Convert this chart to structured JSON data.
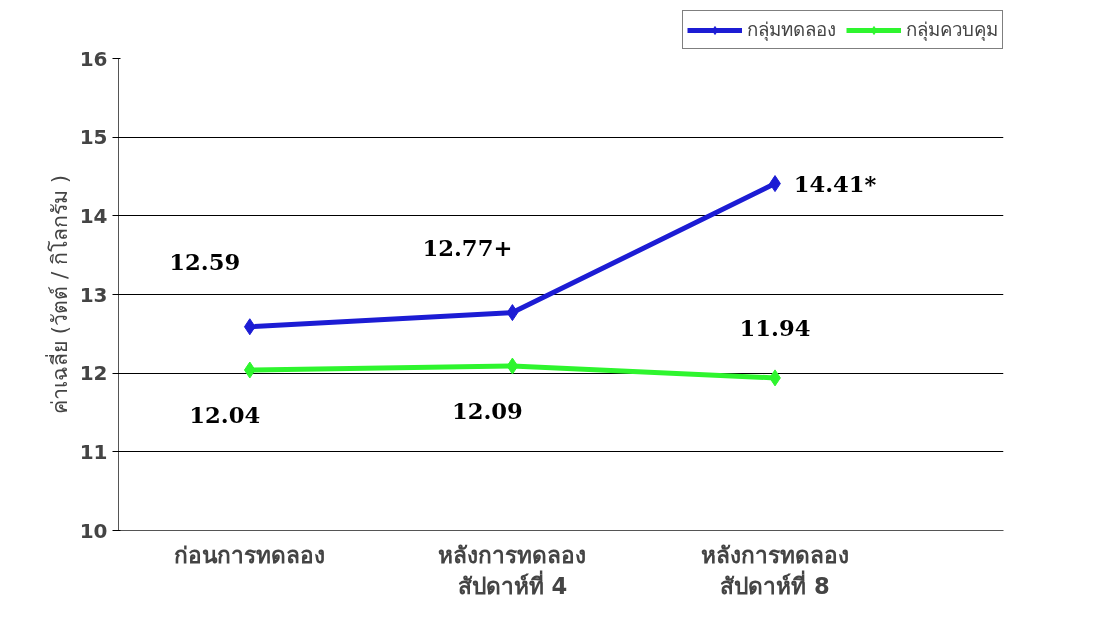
{
  "chart_data": {
    "type": "line",
    "ylabel": "ค่าเฉลี่ย (วัตต์ / กิโลกรัม )",
    "categories": [
      "ก่อนการทดลอง",
      "หลังการทดลอง\nสัปดาห์ที่ 4",
      "หลังการทดลอง\nสัปดาห์ที่ 8"
    ],
    "series": [
      {
        "name": "กลุ่มทดลอง",
        "color": "#1c1cd4",
        "values": [
          12.59,
          12.77,
          14.41
        ],
        "value_labels": [
          "12.59",
          "12.77+",
          "14.41*"
        ]
      },
      {
        "name": "กลุ่มควบคุม",
        "color": "#2ef52e",
        "values": [
          12.04,
          12.09,
          11.94
        ],
        "value_labels": [
          "12.04",
          "12.09",
          "11.94"
        ]
      }
    ],
    "ylim": [
      10,
      16
    ],
    "yticks": [
      10,
      11,
      12,
      13,
      14,
      15,
      16
    ],
    "grid": "y",
    "legend": "top right",
    "marker": "diamond",
    "line_style": "solid"
  }
}
